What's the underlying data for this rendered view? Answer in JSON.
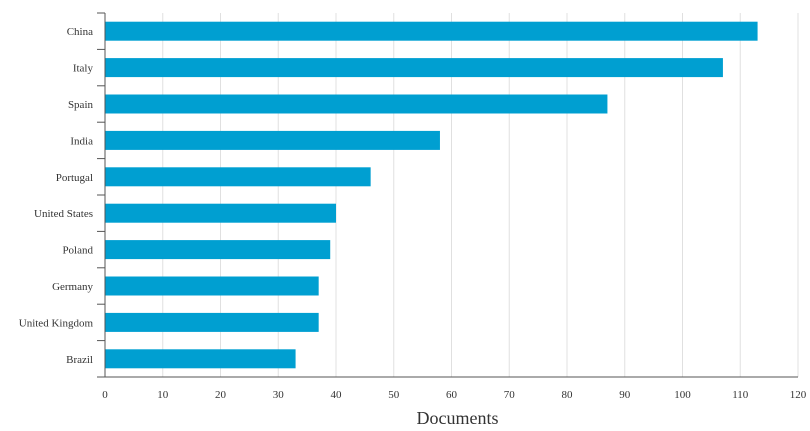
{
  "chart_data": {
    "type": "bar",
    "orientation": "horizontal",
    "categories": [
      "China",
      "Italy",
      "Spain",
      "India",
      "Portugal",
      "United States",
      "Poland",
      "Germany",
      "United Kingdom",
      "Brazil"
    ],
    "values": [
      113,
      107,
      87,
      58,
      46,
      40,
      39,
      37,
      37,
      33
    ],
    "xlabel": "Documents",
    "ylabel": "",
    "xlim": [
      0,
      120
    ],
    "xticks": [
      0,
      10,
      20,
      30,
      40,
      50,
      60,
      70,
      80,
      90,
      100,
      110,
      120
    ],
    "grid": "vertical",
    "bar_color": "#009fd1",
    "grid_color": "#e0e0e0",
    "axis_color": "#555555"
  }
}
